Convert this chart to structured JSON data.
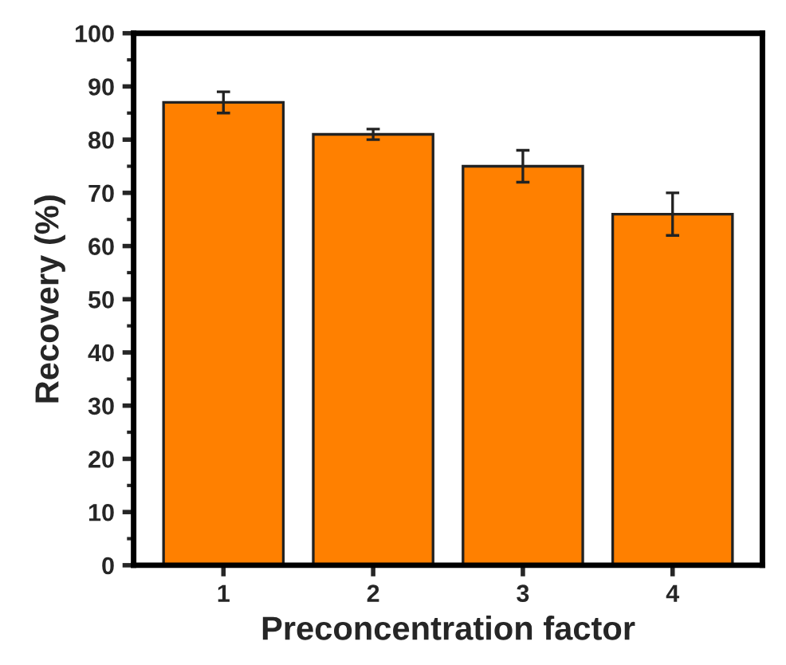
{
  "chart_data": {
    "type": "bar",
    "xlabel": "Preconcentration factor",
    "ylabel": "Recovery (%)",
    "categories": [
      "1",
      "2",
      "3",
      "4"
    ],
    "values": [
      87,
      81,
      75,
      66
    ],
    "errors": [
      2,
      1,
      3,
      4
    ],
    "color": "#ff8000",
    "ylim": [
      0,
      100
    ],
    "yticks": [
      0,
      10,
      20,
      30,
      40,
      50,
      60,
      70,
      80,
      90,
      100
    ],
    "grid": false
  }
}
